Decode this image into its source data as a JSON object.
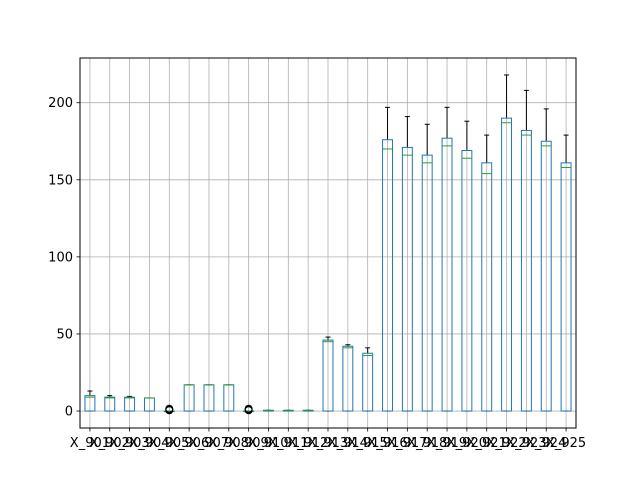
{
  "chart_data": {
    "type": "boxplot",
    "title": "",
    "xlabel": "",
    "ylabel": "",
    "ylim": [
      -11,
      229
    ],
    "yticks": [
      0,
      50,
      100,
      150,
      200
    ],
    "grid": true,
    "categories": [
      "X_901",
      "X_902",
      "X_903",
      "X_904",
      "X_905",
      "X_906",
      "X_907",
      "X_908",
      "X_909",
      "X_910",
      "X_911",
      "X_912",
      "X_913",
      "X_914",
      "X_915",
      "X_916",
      "X_917",
      "X_918",
      "X_919",
      "X_920",
      "X_921",
      "X_922",
      "X_923",
      "X_924",
      "X_925"
    ],
    "boxes": [
      {
        "whislo": 0,
        "q1": 0,
        "med": 9,
        "q3": 10,
        "whishi": 13,
        "fliers": []
      },
      {
        "whislo": 0,
        "q1": 0,
        "med": 8.5,
        "q3": 9,
        "whishi": 10,
        "fliers": []
      },
      {
        "whislo": 0,
        "q1": 0,
        "med": 8.5,
        "q3": 9,
        "whishi": 9.5,
        "fliers": []
      },
      {
        "whislo": 0,
        "q1": 0,
        "med": 8.5,
        "q3": 8.5,
        "whishi": 8.5,
        "fliers": []
      },
      {
        "whislo": 0,
        "q1": 0,
        "med": 0,
        "q3": 0,
        "whishi": 0,
        "fliers": [
          0.5,
          1,
          1.5
        ]
      },
      {
        "whislo": 0,
        "q1": 0,
        "med": 17,
        "q3": 17,
        "whishi": 17,
        "fliers": []
      },
      {
        "whislo": 0,
        "q1": 0,
        "med": 17,
        "q3": 17,
        "whishi": 17,
        "fliers": []
      },
      {
        "whislo": 0,
        "q1": 0,
        "med": 17,
        "q3": 17,
        "whishi": 17,
        "fliers": []
      },
      {
        "whislo": 0,
        "q1": 0,
        "med": 0,
        "q3": 0,
        "whishi": 0,
        "fliers": [
          0.5,
          1,
          1.5
        ]
      },
      {
        "whislo": 0,
        "q1": 0,
        "med": 0,
        "q3": 0.5,
        "whishi": 0.5,
        "fliers": []
      },
      {
        "whislo": 0,
        "q1": 0,
        "med": 0,
        "q3": 0.5,
        "whishi": 0.5,
        "fliers": []
      },
      {
        "whislo": 0,
        "q1": 0,
        "med": 0,
        "q3": 0.5,
        "whishi": 0.5,
        "fliers": []
      },
      {
        "whislo": 0,
        "q1": 0,
        "med": 45,
        "q3": 46,
        "whishi": 48,
        "fliers": []
      },
      {
        "whislo": 0,
        "q1": 0,
        "med": 41,
        "q3": 42,
        "whishi": 43,
        "fliers": []
      },
      {
        "whislo": 0,
        "q1": 0,
        "med": 36,
        "q3": 37.5,
        "whishi": 41,
        "fliers": []
      },
      {
        "whislo": 0,
        "q1": 0,
        "med": 170,
        "q3": 176,
        "whishi": 197,
        "fliers": []
      },
      {
        "whislo": 0,
        "q1": 0,
        "med": 166,
        "q3": 171,
        "whishi": 191,
        "fliers": []
      },
      {
        "whislo": 0,
        "q1": 0,
        "med": 161,
        "q3": 166,
        "whishi": 186,
        "fliers": []
      },
      {
        "whislo": 0,
        "q1": 0,
        "med": 172,
        "q3": 177,
        "whishi": 197,
        "fliers": []
      },
      {
        "whislo": 0,
        "q1": 0,
        "med": 164,
        "q3": 169,
        "whishi": 188,
        "fliers": []
      },
      {
        "whislo": 0,
        "q1": 0,
        "med": 154,
        "q3": 161,
        "whishi": 179,
        "fliers": []
      },
      {
        "whislo": 0,
        "q1": 0,
        "med": 187,
        "q3": 190,
        "whishi": 218,
        "fliers": []
      },
      {
        "whislo": 0,
        "q1": 0,
        "med": 179,
        "q3": 182,
        "whishi": 208,
        "fliers": []
      },
      {
        "whislo": 0,
        "q1": 0,
        "med": 172,
        "q3": 175,
        "whishi": 196,
        "fliers": []
      },
      {
        "whislo": 0,
        "q1": 0,
        "med": 158,
        "q3": 161,
        "whishi": 179,
        "fliers": []
      }
    ],
    "colors": {
      "box": "#1f77b4",
      "median": "#2ca02c",
      "whisker": "#000000",
      "grid": "#b0b0b0",
      "axis": "#000000"
    }
  }
}
